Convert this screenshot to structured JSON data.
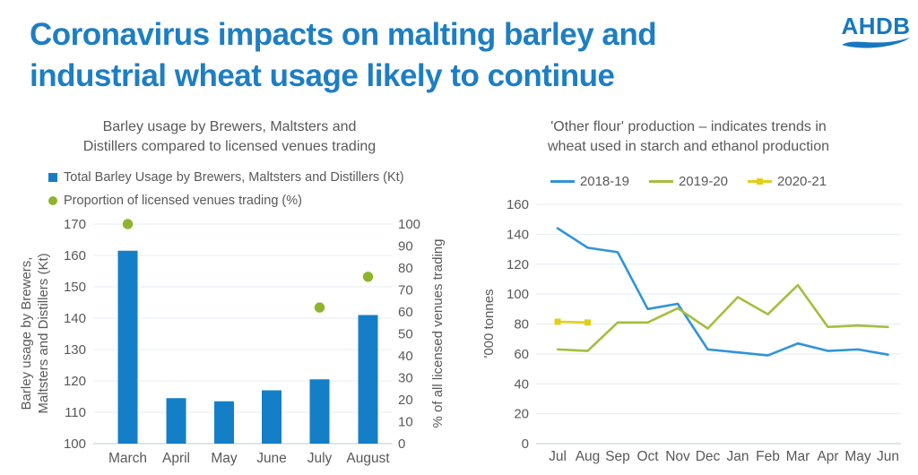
{
  "title": {
    "line1": "Coronavirus impacts on malting barley and",
    "line2": "industrial wheat usage likely to continue"
  },
  "logo": {
    "text": "AHDB"
  },
  "colors": {
    "title_blue": "#1E7EC3",
    "logo_blue": "#1878BE",
    "bar_blue": "#147FC7",
    "dot_green": "#8EB42D",
    "line_blue": "#3094D8",
    "line_green": "#A4BE3E",
    "line_yellow": "#E1D01A",
    "text_gray": "#595959",
    "grid": "#E5EDF5",
    "axis_line": "#D2DBE4"
  },
  "chart_data": [
    {
      "type": "bar",
      "title": "Barley usage by Brewers, Maltsters and Distillers compared to licensed venues trading",
      "title_lines": [
        "Barley usage by Brewers, Maltsters and",
        "Distillers compared to licensed venues trading"
      ],
      "legend": [
        {
          "label": "Total Barley Usage by Brewers, Maltsters and Distillers (Kt)",
          "marker": "square",
          "color_key": "bar_blue"
        },
        {
          "label": "Proportion of licensed venues trading (%)",
          "marker": "circle",
          "color_key": "dot_green"
        }
      ],
      "categories": [
        "March",
        "April",
        "May",
        "June",
        "July",
        "August"
      ],
      "series": [
        {
          "name": "Total Barley Usage by Brewers, Maltsters and Distillers (Kt)",
          "type": "bar",
          "axis": "left",
          "values": [
            161.5,
            114.5,
            113.5,
            117,
            120.5,
            141
          ]
        },
        {
          "name": "Proportion of licensed venues trading (%)",
          "type": "scatter",
          "axis": "right",
          "values": [
            100,
            null,
            null,
            null,
            62,
            76
          ]
        }
      ],
      "left_axis": {
        "label": "Barley usage by Brewers, Maltsters and Distillers (Kt)",
        "label_lines": [
          "Barley usage by Brewers,",
          "Maltsters and Distillers (Kt)"
        ],
        "min": 100,
        "max": 170,
        "step": 10
      },
      "right_axis": {
        "label": "% of all licensed venues trading",
        "min": 0,
        "max": 100,
        "step": 10
      },
      "grid": true,
      "legend_position": "top-left"
    },
    {
      "type": "line",
      "title": "'Other flour' production – indicates trends in wheat used in starch and ethanol production",
      "title_lines": [
        "'Other flour' production – indicates trends in",
        "wheat used in starch and ethanol production"
      ],
      "categories": [
        "Jul",
        "Aug",
        "Sep",
        "Oct",
        "Nov",
        "Dec",
        "Jan",
        "Feb",
        "Mar",
        "Apr",
        "May",
        "Jun"
      ],
      "series": [
        {
          "name": "2018-19",
          "color_key": "line_blue",
          "values": [
            144,
            131,
            128,
            90,
            93.5,
            63,
            61,
            59,
            67,
            62,
            63,
            59.5
          ]
        },
        {
          "name": "2019-20",
          "color_key": "line_green",
          "values": [
            63,
            62,
            81,
            81,
            90.5,
            77,
            98,
            86.5,
            106,
            78,
            79,
            78
          ]
        },
        {
          "name": "2020-21",
          "color_key": "line_yellow",
          "marker": "square",
          "values": [
            81.5,
            81,
            null,
            null,
            null,
            null,
            null,
            null,
            null,
            null,
            null,
            null
          ]
        }
      ],
      "ylabel": "'000 tonnes",
      "y_axis": {
        "min": 0,
        "max": 160,
        "step": 20
      },
      "grid": true,
      "legend_position": "top-center"
    }
  ]
}
